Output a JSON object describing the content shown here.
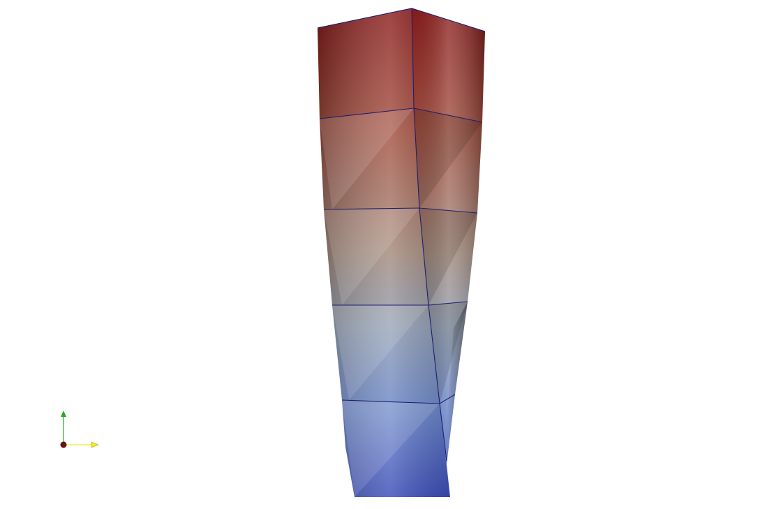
{
  "view": {
    "background": "#ffffff",
    "colormap": {
      "low": "#3b4cc0",
      "mid": "#8f9fa6",
      "high": "#8a1c1c"
    },
    "mesh_edge_color": "#1c1f6e",
    "orientation_axes": {
      "x_axis_color": "#f0e82a",
      "y_axis_color": "#22aa22",
      "z_axis_color": "#6a1010"
    }
  }
}
